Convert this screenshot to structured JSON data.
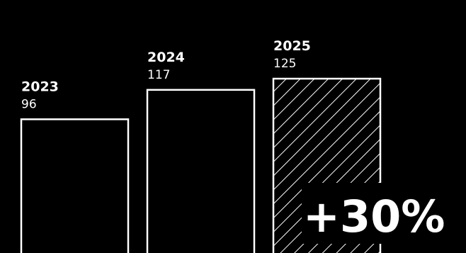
{
  "colors": {
    "background": "#000000",
    "foreground": "#ffffff"
  },
  "chart_data": {
    "type": "bar",
    "categories": [
      "2023",
      "2024",
      "2025"
    ],
    "values": [
      96,
      117,
      125
    ],
    "hatched": [
      false,
      false,
      true
    ],
    "ylim": [
      0,
      125
    ],
    "grid": false,
    "annotations": [
      {
        "text": "+30%",
        "category": "2025"
      }
    ]
  }
}
